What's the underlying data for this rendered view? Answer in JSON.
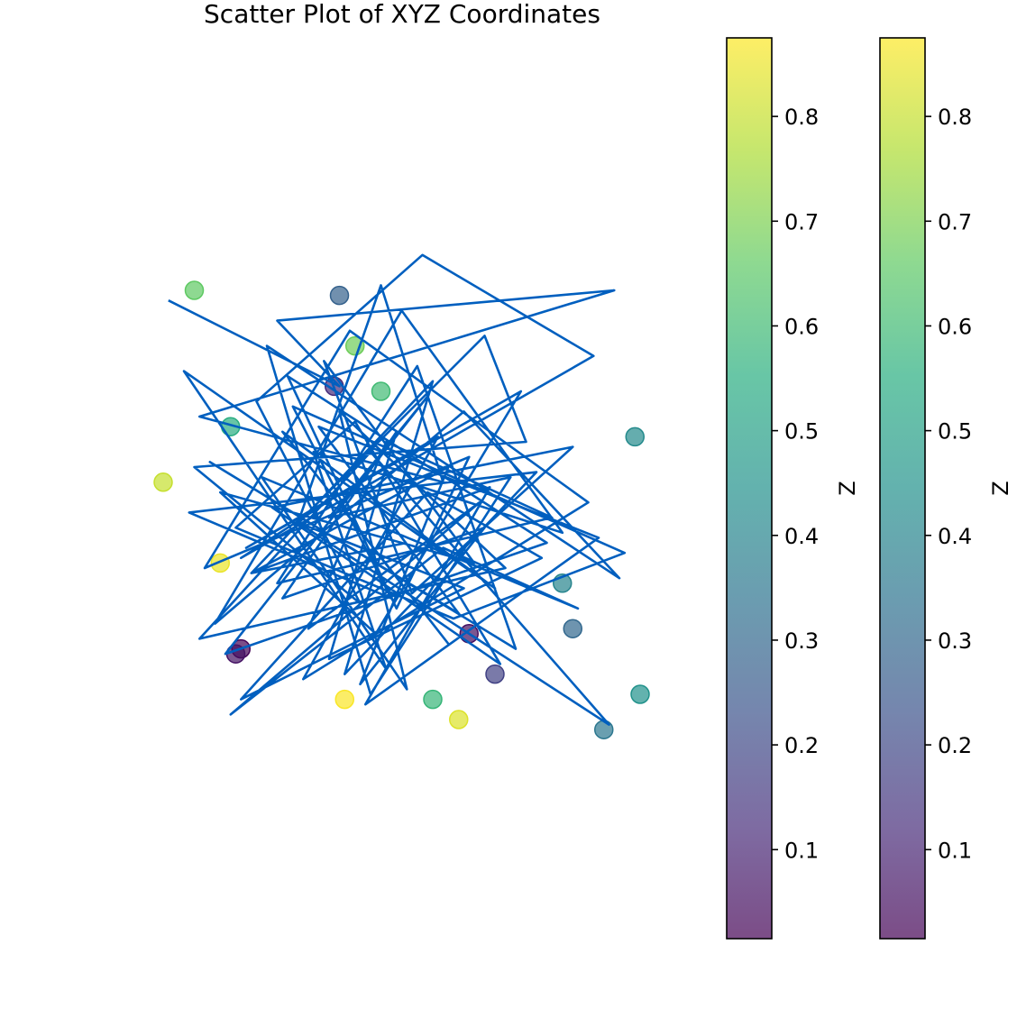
{
  "chart_data": {
    "type": "scatter",
    "title": "Scatter Plot of XYZ Coordinates",
    "xlim": [
      0,
      1
    ],
    "ylim": [
      0,
      1
    ],
    "axes_visible": false,
    "grid": false,
    "points": [
      {
        "x": 0.1,
        "y": 0.9,
        "z": 0.66
      },
      {
        "x": 0.38,
        "y": 0.89,
        "z": 0.28
      },
      {
        "x": 0.41,
        "y": 0.79,
        "z": 0.68
      },
      {
        "x": 0.37,
        "y": 0.71,
        "z": 0.12
      },
      {
        "x": 0.46,
        "y": 0.7,
        "z": 0.6
      },
      {
        "x": 0.17,
        "y": 0.63,
        "z": 0.55
      },
      {
        "x": 0.95,
        "y": 0.61,
        "z": 0.42
      },
      {
        "x": 0.04,
        "y": 0.52,
        "z": 0.8
      },
      {
        "x": 0.15,
        "y": 0.36,
        "z": 0.85
      },
      {
        "x": 0.81,
        "y": 0.32,
        "z": 0.4
      },
      {
        "x": 0.83,
        "y": 0.23,
        "z": 0.3
      },
      {
        "x": 0.63,
        "y": 0.22,
        "z": 0.05
      },
      {
        "x": 0.19,
        "y": 0.19,
        "z": 0.02
      },
      {
        "x": 0.18,
        "y": 0.18,
        "z": 0.06
      },
      {
        "x": 0.68,
        "y": 0.14,
        "z": 0.18
      },
      {
        "x": 0.96,
        "y": 0.1,
        "z": 0.45
      },
      {
        "x": 0.39,
        "y": 0.09,
        "z": 0.87
      },
      {
        "x": 0.56,
        "y": 0.09,
        "z": 0.58
      },
      {
        "x": 0.61,
        "y": 0.05,
        "z": 0.83
      },
      {
        "x": 0.89,
        "y": 0.03,
        "z": 0.35
      }
    ],
    "line": {
      "color": "#005fbf",
      "x": [
        0.05,
        0.38,
        0.26,
        0.91,
        0.11,
        0.58,
        0.46,
        0.3,
        0.66,
        0.74,
        0.1,
        0.42,
        0.22,
        0.54,
        0.87,
        0.19,
        0.37,
        0.59,
        0.27,
        0.68,
        0.08,
        0.47,
        0.33,
        0.81,
        0.5,
        0.14,
        0.62,
        0.92,
        0.24,
        0.44,
        0.71,
        0.36,
        0.55,
        0.16,
        0.78,
        0.28,
        0.49,
        0.63,
        0.12,
        0.4,
        0.86,
        0.31,
        0.57,
        0.2,
        0.73,
        0.45,
        0.15,
        0.64,
        0.35,
        0.52,
        0.83,
        0.25,
        0.69,
        0.41,
        0.18,
        0.6,
        0.93,
        0.29,
        0.48,
        0.09,
        0.76,
        0.39,
        0.56,
        0.21,
        0.67,
        0.43,
        0.88,
        0.34,
        0.61,
        0.13,
        0.72,
        0.53,
        0.26,
        0.79,
        0.47,
        0.32,
        0.65,
        0.17,
        0.58,
        0.84,
        0.23,
        0.51,
        0.38,
        0.7,
        0.11,
        0.44,
        0.9,
        0.3,
        0.62,
        0.19,
        0.55,
        0.77,
        0.36,
        0.49,
        0.27,
        0.66,
        0.42,
        0.59,
        0.21,
        0.51
      ],
      "y": [
        0.88,
        0.71,
        0.84,
        0.9,
        0.65,
        0.52,
        0.91,
        0.44,
        0.81,
        0.6,
        0.55,
        0.28,
        0.68,
        0.97,
        0.77,
        0.37,
        0.49,
        0.2,
        0.62,
        0.31,
        0.74,
        0.15,
        0.58,
        0.42,
        0.86,
        0.24,
        0.66,
        0.33,
        0.79,
        0.1,
        0.53,
        0.45,
        0.69,
        0.18,
        0.4,
        0.73,
        0.27,
        0.57,
        0.35,
        0.82,
        0.48,
        0.13,
        0.61,
        0.39,
        0.7,
        0.22,
        0.5,
        0.36,
        0.76,
        0.3,
        0.59,
        0.47,
        0.16,
        0.64,
        0.43,
        0.25,
        0.38,
        0.67,
        0.29,
        0.46,
        0.54,
        0.14,
        0.72,
        0.34,
        0.51,
        0.08,
        0.41,
        0.63,
        0.26,
        0.56,
        0.19,
        0.75,
        0.32,
        0.45,
        0.6,
        0.23,
        0.48,
        0.06,
        0.39,
        0.27,
        0.53,
        0.11,
        0.66,
        0.35,
        0.21,
        0.58,
        0.04,
        0.44,
        0.31,
        0.09,
        0.5,
        0.37,
        0.17,
        0.62,
        0.29,
        0.43,
        0.12,
        0.55,
        0.34,
        0.4
      ]
    },
    "colorbars": [
      {
        "label": "Z",
        "ticks": [
          0.1,
          0.2,
          0.3,
          0.4,
          0.5,
          0.6,
          0.7,
          0.8
        ],
        "range": [
          0.015,
          0.875
        ],
        "colormap": "viridis",
        "alpha": 0.7
      },
      {
        "label": "Z",
        "ticks": [
          0.1,
          0.2,
          0.3,
          0.4,
          0.5,
          0.6,
          0.7,
          0.8
        ],
        "range": [
          0.015,
          0.875
        ],
        "colormap": "viridis",
        "alpha": 0.7
      }
    ]
  }
}
